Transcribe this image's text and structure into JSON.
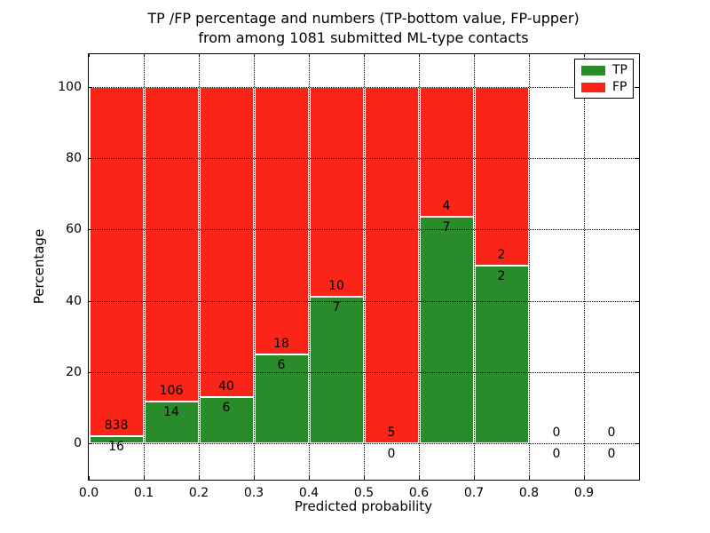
{
  "title": {
    "line1": "TP /FP percentage and numbers (TP-bottom value, FP-upper)",
    "line2": "from among 1081 submitted ML-type contacts"
  },
  "chart_data": {
    "type": "bar",
    "subtype": "stacked-percentage-histogram",
    "title": "TP /FP percentage and numbers (TP-bottom value, FP-upper) from among 1081 submitted ML-type contacts",
    "xlabel": "Predicted probability",
    "ylabel": "Percentage",
    "xlim": [
      0.0,
      1.0
    ],
    "ylim": [
      -10,
      110
    ],
    "bin_width": 0.1,
    "bin_starts": [
      0.0,
      0.1,
      0.2,
      0.3,
      0.4,
      0.5,
      0.6,
      0.7,
      0.8,
      0.9
    ],
    "x_tick_labels": [
      "0.0",
      "0.1",
      "0.2",
      "0.3",
      "0.4",
      "0.5",
      "0.6",
      "0.7",
      "0.8",
      "0.9"
    ],
    "y_ticks": [
      0,
      20,
      40,
      60,
      80,
      100
    ],
    "grid": "dotted-black-both-axes",
    "legend_position": "upper-right",
    "bar_edge_color": "#ffffff",
    "series": [
      {
        "name": "TP",
        "color": "#2a8b2a",
        "counts": [
          16,
          14,
          6,
          6,
          7,
          0,
          7,
          2,
          0,
          0
        ]
      },
      {
        "name": "FP",
        "color": "#fa2418",
        "counts": [
          838,
          106,
          40,
          18,
          10,
          5,
          4,
          2,
          0,
          0
        ]
      }
    ],
    "tp_percent_heights": [
      1.9,
      11.7,
      13.0,
      25.0,
      41.2,
      0.0,
      63.6,
      50.0,
      0.0,
      0.0
    ],
    "label_convention": "FP count printed above TP/FP boundary, TP count printed below it"
  }
}
